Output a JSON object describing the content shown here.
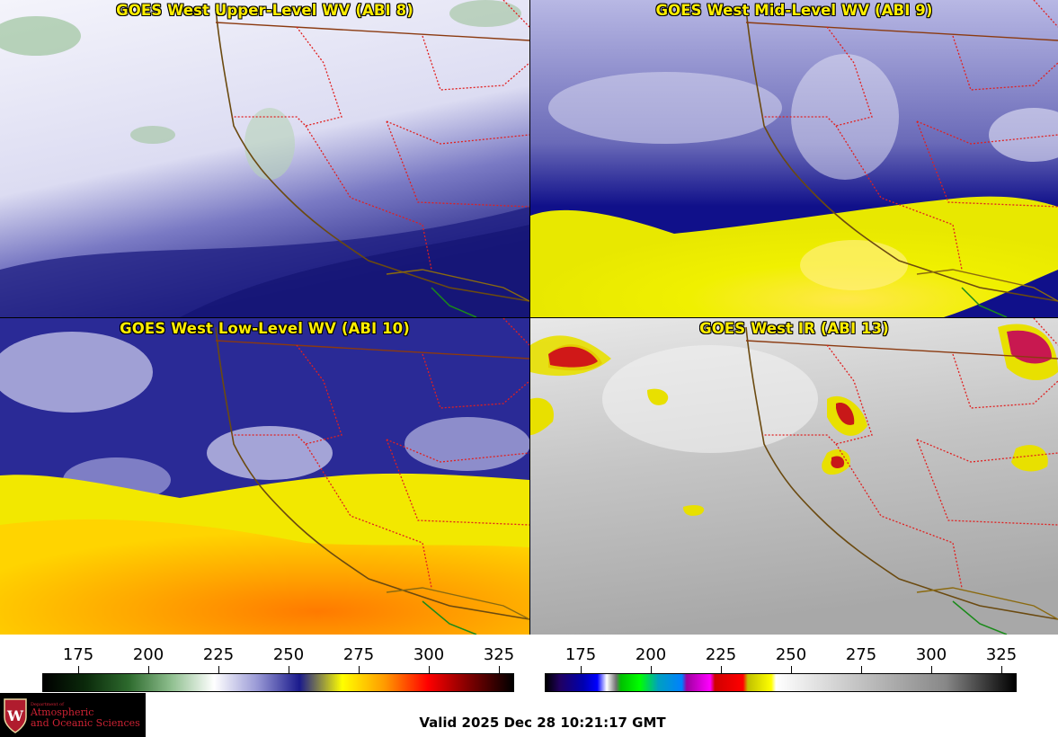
{
  "panels": [
    {
      "title": "GOES West Upper-Level WV (ABI 8)"
    },
    {
      "title": "GOES West Mid-Level WV (ABI 9)"
    },
    {
      "title": "GOES West Low-Level WV (ABI 10)"
    },
    {
      "title": "GOES West IR (ABI 13)"
    }
  ],
  "wv_colorbar": {
    "ticks": [
      "175",
      "200",
      "225",
      "250",
      "275",
      "300",
      "325"
    ],
    "colors": [
      "#000000",
      "#0b2a0b",
      "#2d6a2d",
      "#8fbf8f",
      "#ffffff",
      "#9a9ad6",
      "#1a1a8c",
      "#ffff00",
      "#ff9900",
      "#ff0000",
      "#7a0000",
      "#000000"
    ]
  },
  "ir_colorbar": {
    "ticks": [
      "175",
      "200",
      "225",
      "250",
      "275",
      "300",
      "325"
    ]
  },
  "logo": {
    "small": "Department of",
    "line1": "Atmospheric",
    "line2": "and Oceanic Sciences"
  },
  "valid_time": "Valid 2025 Dec 28 10:21:17 GMT"
}
